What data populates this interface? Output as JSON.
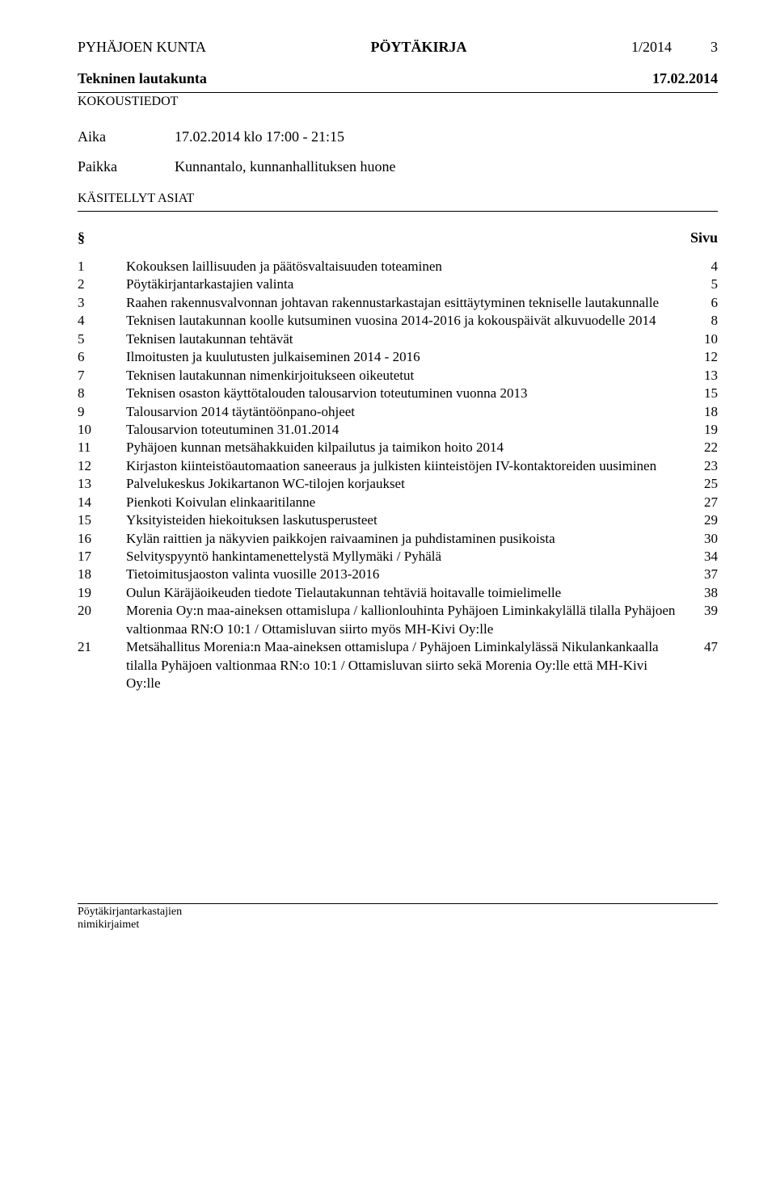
{
  "header": {
    "org": "PYHÄJOEN KUNTA",
    "doctype": "PÖYTÄKIRJA",
    "docnum": "1/2014",
    "pagenum": "3"
  },
  "subheader": {
    "board": "Tekninen lautakunta",
    "date": "17.02.2014",
    "tiedot": "KOKOUSTIEDOT"
  },
  "meta": {
    "aika_label": "Aika",
    "aika_value": "17.02.2014 klo 17:00 - 21:15",
    "paikka_label": "Paikka",
    "paikka_value": "Kunnantalo, kunnanhallituksen huone",
    "kasitellyt": "KÄSITELLYT ASIAT"
  },
  "section": {
    "col_left": "§",
    "col_right": "Sivu"
  },
  "toc": [
    {
      "num": "1",
      "title": "Kokouksen laillisuuden ja päätösvaltaisuuden toteaminen",
      "page": "4"
    },
    {
      "num": "2",
      "title": "Pöytäkirjantarkastajien valinta",
      "page": "5"
    },
    {
      "num": "3",
      "title": "Raahen rakennusvalvonnan johtavan rakennustarkastajan esittäytyminen tekniselle lautakunnalle",
      "page": "6"
    },
    {
      "num": "4",
      "title": "Teknisen lautakunnan koolle kutsuminen vuosina 2014-2016 ja kokouspäivät alkuvuodelle 2014",
      "page": "8"
    },
    {
      "num": "5",
      "title": "Teknisen lautakunnan tehtävät",
      "page": "10"
    },
    {
      "num": "6",
      "title": "Ilmoitusten ja kuulutusten julkaiseminen 2014 - 2016",
      "page": "12"
    },
    {
      "num": "7",
      "title": "Teknisen lautakunnan nimenkirjoitukseen oikeutetut",
      "page": "13"
    },
    {
      "num": "8",
      "title": "Teknisen osaston käyttötalouden talousarvion toteutuminen vuonna 2013",
      "page": "15"
    },
    {
      "num": "9",
      "title": "Talousarvion 2014 täytäntöönpano-ohjeet",
      "page": "18"
    },
    {
      "num": "10",
      "title": "Talousarvion toteutuminen 31.01.2014",
      "page": "19"
    },
    {
      "num": "11",
      "title": "Pyhäjoen kunnan metsähakkuiden kilpailutus ja taimikon hoito 2014",
      "page": "22"
    },
    {
      "num": "12",
      "title": "Kirjaston kiinteistöautomaation saneeraus ja julkisten kiinteistöjen IV-kontaktoreiden uusiminen",
      "page": "23"
    },
    {
      "num": "13",
      "title": "Palvelukeskus Jokikartanon WC-tilojen korjaukset",
      "page": "25"
    },
    {
      "num": "14",
      "title": "Pienkoti Koivulan elinkaaritilanne",
      "page": "27"
    },
    {
      "num": "15",
      "title": "Yksityisteiden hiekoituksen laskutusperusteet",
      "page": "29"
    },
    {
      "num": "16",
      "title": "Kylän raittien ja näkyvien paikkojen raivaaminen ja puhdistaminen pusikoista",
      "page": "30"
    },
    {
      "num": "17",
      "title": "Selvityspyyntö hankintamenettelystä Myllymäki / Pyhälä",
      "page": "34"
    },
    {
      "num": "18",
      "title": "Tietoimitusjaoston valinta vuosille 2013-2016",
      "page": "37"
    },
    {
      "num": "19",
      "title": "Oulun Käräjäoikeuden tiedote Tielautakunnan tehtäviä hoitavalle toimielimelle",
      "page": "38"
    },
    {
      "num": "20",
      "title": "Morenia Oy:n maa-aineksen ottamislupa / kallionlouhinta Pyhäjoen Liminkakylällä tilalla Pyhäjoen valtionmaa RN:O 10:1 / Ottamisluvan siirto myös MH-Kivi Oy:lle",
      "page": "39"
    },
    {
      "num": "21",
      "title": "Metsähallitus Morenia:n Maa-aineksen ottamislupa / Pyhäjoen Liminkalylässä Nikulankankaalla  tilalla Pyhäjoen valtionmaa RN:o 10:1 / Ottamisluvan siirto sekä Morenia Oy:lle että  MH-Kivi Oy:lle",
      "page": "47"
    }
  ],
  "footer": {
    "line1": "Pöytäkirjantarkastajien",
    "line2": "nimikirjaimet"
  }
}
